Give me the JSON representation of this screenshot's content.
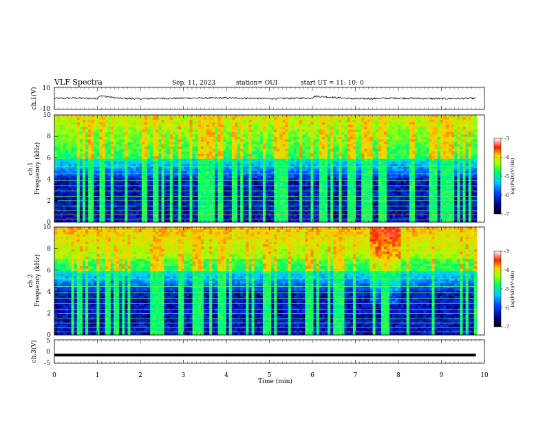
{
  "header": {
    "title": "VLF Spectra",
    "date": "Sep. 11, 2023",
    "station": "station= OUI",
    "start": "start UT =  11: 10: 0"
  },
  "colors": {
    "spectrogram_low": "#000033",
    "spectrogram_mid": "#00ff66",
    "spectrogram_high": "#ff0000",
    "waveform": "#000000"
  },
  "chart_data": [
    {
      "type": "line",
      "name": "ch1-waveform",
      "ylabel": "ch.1(V)",
      "ylim": [
        -10,
        10
      ],
      "yticks": [
        "10",
        "-10"
      ],
      "x": [
        0,
        0.5,
        1,
        1.05,
        1.5,
        2,
        3,
        4,
        5,
        6,
        6.05,
        7,
        8,
        9,
        9.8
      ],
      "y": [
        0,
        0.3,
        -0.2,
        2.5,
        0.1,
        -0.3,
        0.2,
        0.4,
        -0.2,
        0.3,
        2.0,
        -0.4,
        0.2,
        -0.3,
        0.1
      ]
    },
    {
      "type": "heatmap",
      "name": "ch1-spectrogram",
      "ylabel": "ch.1\nFrequency (kHz)",
      "ylim": [
        0,
        10
      ],
      "yticks": [
        "0",
        "2",
        "4",
        "6",
        "8",
        "10"
      ],
      "colorbar": {
        "label": "log(PSD)(V²/Hz)",
        "range": [
          -7,
          -3
        ],
        "ticks": [
          "-3",
          "-4",
          "-5",
          "-6",
          "-7"
        ]
      }
    },
    {
      "type": "heatmap",
      "name": "ch2-spectrogram",
      "ylabel": "ch.2\nFrequency (kHz)",
      "ylim": [
        0,
        10
      ],
      "yticks": [
        "0",
        "2",
        "4",
        "6",
        "8",
        "10"
      ],
      "colorbar": {
        "label": "log(PSD)(V²/Hz)",
        "range": [
          -7,
          -3
        ],
        "ticks": [
          "-3",
          "-4",
          "-5",
          "-6",
          "-7"
        ]
      }
    },
    {
      "type": "line",
      "name": "ch3-waveform",
      "ylabel": "ch.3(V)",
      "ylim": [
        -5,
        5
      ],
      "yticks": [
        "5",
        "0",
        "-5"
      ],
      "x": [
        0,
        9.8
      ],
      "y": [
        -1.5,
        -1.5
      ]
    }
  ],
  "xaxis": {
    "label": "Time (min)",
    "range": [
      0,
      10
    ],
    "ticks": [
      "0",
      "1",
      "2",
      "3",
      "4",
      "5",
      "6",
      "7",
      "8",
      "9",
      "10"
    ]
  }
}
